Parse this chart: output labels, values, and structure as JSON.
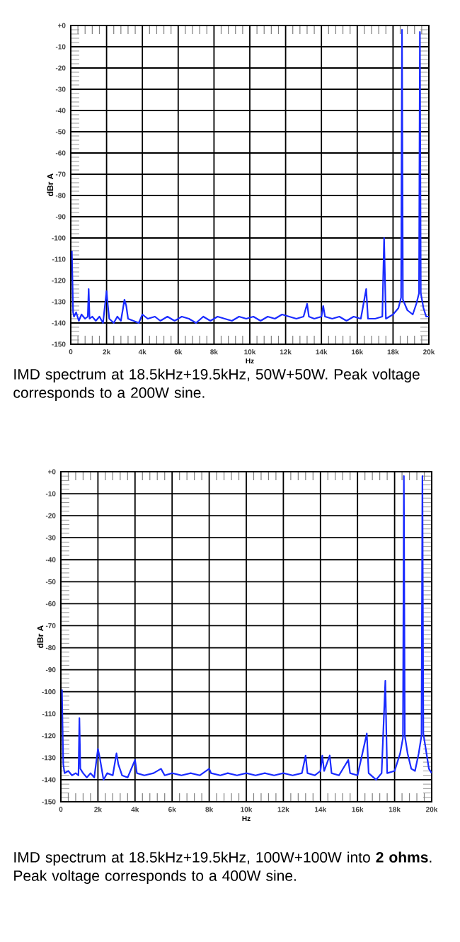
{
  "chart_data": [
    {
      "type": "line",
      "xlabel": "Hz",
      "ylabel": "dBr A",
      "annotations": [
        "IMD spectrum at 18.5kHz+19.5kHz, 50W+50W. Peak voltage corresponds to a 200W sine."
      ],
      "xlim": [
        0,
        20000
      ],
      "ylim": [
        -150,
        0
      ],
      "xticks": [
        {
          "value": 0,
          "label": "0"
        },
        {
          "value": 2000,
          "label": "2k"
        },
        {
          "value": 4000,
          "label": "4k"
        },
        {
          "value": 6000,
          "label": "6k"
        },
        {
          "value": 8000,
          "label": "8k"
        },
        {
          "value": 10000,
          "label": "10k"
        },
        {
          "value": 12000,
          "label": "12k"
        },
        {
          "value": 14000,
          "label": "14k"
        },
        {
          "value": 16000,
          "label": "16k"
        },
        {
          "value": 18000,
          "label": "18k"
        },
        {
          "value": 20000,
          "label": "20k"
        }
      ],
      "yticks": [
        {
          "value": 0,
          "label": "+0"
        },
        -10,
        -20,
        -30,
        -40,
        -50,
        -60,
        -70,
        -80,
        -90,
        -100,
        -110,
        -120,
        -130,
        -140,
        -150
      ],
      "grid": true,
      "marker": "none",
      "line_style": "solid",
      "series": [
        {
          "color": "#1a2bff",
          "x": [
            60,
            90,
            130,
            180,
            300,
            450,
            600,
            800,
            950,
            1000,
            1050,
            1200,
            1400,
            1600,
            1800,
            2000,
            2050,
            2150,
            2400,
            2600,
            2800,
            3000,
            3100,
            3200,
            3500,
            3800,
            4000,
            4300,
            4700,
            5000,
            5400,
            5800,
            6200,
            6600,
            7000,
            7400,
            7800,
            8200,
            8600,
            9000,
            9400,
            9800,
            10200,
            10600,
            11000,
            11400,
            11800,
            12200,
            12600,
            13000,
            13200,
            13300,
            13600,
            14000,
            14100,
            14200,
            14600,
            15000,
            15400,
            15800,
            16200,
            16500,
            16600,
            17000,
            17400,
            17500,
            17600,
            18000,
            18300,
            18450,
            18500,
            18550,
            18800,
            19100,
            19300,
            19450,
            19500,
            19550,
            19700,
            19850,
            20000
          ],
          "values": [
            -106,
            -118,
            -135,
            -137,
            -135,
            -139,
            -136,
            -138,
            -137,
            -124,
            -138,
            -137,
            -139,
            -137,
            -140,
            -125,
            -130,
            -138,
            -140,
            -137,
            -139,
            -129,
            -132,
            -138,
            -139,
            -140,
            -136,
            -138,
            -137,
            -139,
            -137,
            -139,
            -137,
            -138,
            -140,
            -137,
            -139,
            -137,
            -138,
            -139,
            -137,
            -138,
            -137,
            -139,
            -137,
            -138,
            -136,
            -137,
            -138,
            -137,
            -131,
            -137,
            -138,
            -137,
            -132,
            -137,
            -138,
            -137,
            -139,
            -137,
            -138,
            -124,
            -138,
            -138,
            -137,
            -100,
            -138,
            -136,
            -133,
            -128,
            -2,
            -129,
            -134,
            -136,
            -131,
            -126,
            -3,
            -126,
            -133,
            -137,
            -137
          ]
        }
      ]
    },
    {
      "type": "line",
      "xlabel": "Hz",
      "ylabel": "dBr A",
      "annotations": [
        "IMD spectrum at 18.5kHz+19.5kHz, 100W+100W into **2 ohms**. Peak voltage corresponds to a 400W sine."
      ],
      "xlim": [
        0,
        20000
      ],
      "ylim": [
        -150,
        0
      ],
      "xticks": [
        {
          "value": 0,
          "label": "0"
        },
        {
          "value": 2000,
          "label": "2k"
        },
        {
          "value": 4000,
          "label": "4k"
        },
        {
          "value": 6000,
          "label": "6k"
        },
        {
          "value": 8000,
          "label": "8k"
        },
        {
          "value": 10000,
          "label": "10k"
        },
        {
          "value": 12000,
          "label": "12k"
        },
        {
          "value": 14000,
          "label": "14k"
        },
        {
          "value": 16000,
          "label": "16k"
        },
        {
          "value": 18000,
          "label": "18k"
        },
        {
          "value": 20000,
          "label": "20k"
        }
      ],
      "yticks": [
        {
          "value": 0,
          "label": "+0"
        },
        -10,
        -20,
        -30,
        -40,
        -50,
        -60,
        -70,
        -80,
        -90,
        -100,
        -110,
        -120,
        -130,
        -140,
        -150
      ],
      "grid": true,
      "marker": "none",
      "line_style": "solid",
      "series": [
        {
          "color": "#1a2bff",
          "x": [
            60,
            90,
            130,
            200,
            400,
            600,
            800,
            950,
            1000,
            1050,
            1200,
            1400,
            1600,
            1800,
            2000,
            2100,
            2300,
            2500,
            2800,
            3000,
            3100,
            3300,
            3600,
            4000,
            4100,
            4500,
            5000,
            5400,
            5600,
            6000,
            6500,
            7000,
            7500,
            8000,
            8100,
            8600,
            9000,
            9500,
            10000,
            10500,
            11000,
            11500,
            12000,
            12500,
            13000,
            13200,
            13300,
            13700,
            14000,
            14100,
            14200,
            14500,
            14600,
            15000,
            15500,
            15600,
            16000,
            16500,
            16600,
            17000,
            17300,
            17500,
            17600,
            18000,
            18300,
            18450,
            18500,
            18550,
            18700,
            18900,
            19100,
            19300,
            19450,
            19500,
            19550,
            19700,
            19850,
            20000
          ],
          "values": [
            -99,
            -115,
            -133,
            -137,
            -136,
            -138,
            -137,
            -138,
            -112,
            -135,
            -137,
            -139,
            -137,
            -139,
            -126,
            -130,
            -140,
            -137,
            -138,
            -128,
            -133,
            -138,
            -139,
            -131,
            -137,
            -138,
            -137,
            -135,
            -138,
            -137,
            -138,
            -137,
            -138,
            -135,
            -137,
            -138,
            -137,
            -138,
            -137,
            -138,
            -137,
            -138,
            -137,
            -138,
            -137,
            -129,
            -137,
            -138,
            -136,
            -129,
            -136,
            -129,
            -137,
            -138,
            -131,
            -137,
            -138,
            -119,
            -137,
            -140,
            -137,
            -95,
            -137,
            -136,
            -128,
            -121,
            -2,
            -120,
            -128,
            -135,
            -136,
            -128,
            -120,
            -2,
            -119,
            -127,
            -135,
            -137
          ]
        }
      ]
    }
  ]
}
